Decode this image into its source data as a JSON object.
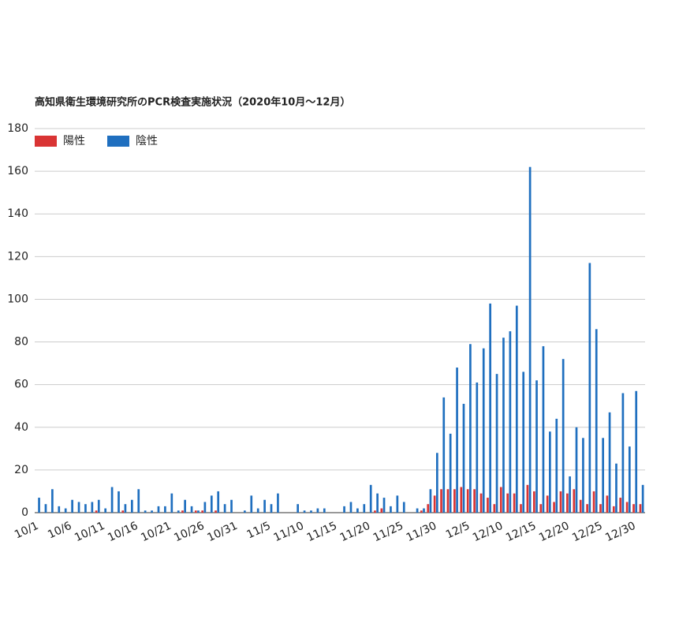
{
  "chart_data": {
    "type": "bar",
    "title": "高知県衛生環境研究所のPCR検査実施状況（2020年10月～12月）",
    "categories": [
      "10/1",
      null,
      null,
      null,
      null,
      "10/6",
      null,
      null,
      null,
      null,
      "10/11",
      null,
      null,
      null,
      null,
      "10/16",
      null,
      null,
      null,
      null,
      "10/21",
      null,
      null,
      null,
      null,
      "10/26",
      null,
      null,
      null,
      null,
      "10/31",
      null,
      null,
      null,
      null,
      "11/5",
      null,
      null,
      null,
      null,
      "11/10",
      null,
      null,
      null,
      null,
      "11/15",
      null,
      null,
      null,
      null,
      "11/20",
      null,
      null,
      null,
      null,
      "11/25",
      null,
      null,
      null,
      null,
      "11/30",
      null,
      null,
      null,
      null,
      "12/5",
      null,
      null,
      null,
      null,
      "12/10",
      null,
      null,
      null,
      null,
      "12/15",
      null,
      null,
      null,
      null,
      "12/20",
      null,
      null,
      null,
      null,
      "12/25",
      null,
      null,
      null,
      null,
      "12/30",
      null
    ],
    "series": [
      {
        "name": "陽性",
        "color": "#d93434",
        "values": [
          0,
          0,
          0,
          0,
          0,
          0,
          0,
          0,
          0,
          1,
          0,
          0,
          0,
          1,
          0,
          0,
          0,
          0,
          0,
          0,
          0,
          0,
          1,
          0,
          1,
          1,
          0,
          1,
          0,
          0,
          0,
          0,
          0,
          0,
          0,
          0,
          0,
          0,
          0,
          0,
          0,
          0,
          0,
          0,
          0,
          0,
          0,
          0,
          0,
          0,
          0,
          1,
          2,
          0,
          0,
          0,
          0,
          0,
          1,
          4,
          8,
          11,
          11,
          11,
          12,
          11,
          11,
          9,
          7,
          4,
          12,
          9,
          9,
          4,
          13,
          10,
          4,
          8,
          5,
          10,
          9,
          11,
          6,
          4,
          10,
          4,
          8,
          3,
          7,
          5,
          4,
          4
        ]
      },
      {
        "name": "陰性",
        "color": "#1f6fbf",
        "values": [
          7,
          4,
          11,
          3,
          2,
          6,
          5,
          4,
          5,
          6,
          2,
          12,
          10,
          4,
          6,
          11,
          1,
          1,
          3,
          3,
          9,
          1,
          6,
          3,
          1,
          5,
          8,
          10,
          4,
          6,
          0,
          1,
          8,
          2,
          6,
          4,
          9,
          0,
          0,
          4,
          1,
          1,
          2,
          2,
          0,
          0,
          3,
          5,
          2,
          4,
          13,
          9,
          7,
          3,
          8,
          5,
          0,
          2,
          2,
          11,
          28,
          54,
          37,
          68,
          51,
          79,
          61,
          77,
          98,
          65,
          82,
          85,
          97,
          66,
          162,
          62,
          78,
          38,
          44,
          72,
          17,
          40,
          35,
          117,
          86,
          35,
          47,
          23,
          56,
          31,
          57,
          13
        ]
      }
    ],
    "ylim": [
      0,
      180
    ],
    "yticks": [
      0,
      20,
      40,
      60,
      80,
      100,
      120,
      140,
      160,
      180
    ],
    "grid": true,
    "legend": "top-left"
  }
}
